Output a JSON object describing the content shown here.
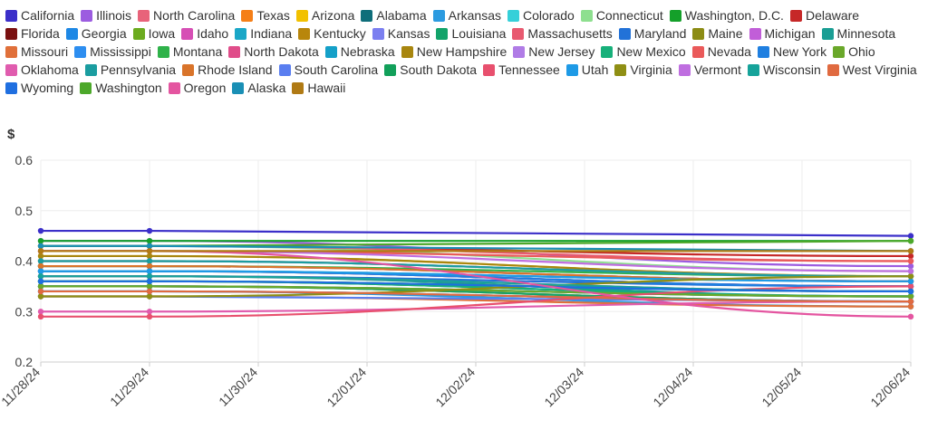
{
  "chart_data": {
    "type": "line",
    "ylabel": "$",
    "xlabel": "",
    "ylim": [
      0.2,
      0.6
    ],
    "yticks": [
      "0.2",
      "0.3",
      "0.4",
      "0.5",
      "0.6"
    ],
    "x": [
      "11/28/24",
      "11/29/24",
      "11/30/24",
      "12/01/24",
      "12/02/24",
      "12/03/24",
      "12/04/24",
      "12/05/24",
      "12/06/24"
    ],
    "grid": true,
    "legend_position": "top",
    "series": [
      {
        "name": "California",
        "color": "#3b2fc9",
        "values": [
          0.46,
          0.46,
          null,
          null,
          null,
          null,
          null,
          null,
          0.45
        ]
      },
      {
        "name": "Illinois",
        "color": "#9c5ce0",
        "values": [
          0.44,
          0.44,
          null,
          null,
          null,
          null,
          null,
          null,
          0.39
        ]
      },
      {
        "name": "North Carolina",
        "color": "#e8637a",
        "values": [
          0.39,
          0.39,
          null,
          null,
          null,
          null,
          null,
          null,
          0.36
        ]
      },
      {
        "name": "Texas",
        "color": "#f57f17",
        "values": [
          0.35,
          0.35,
          null,
          null,
          null,
          null,
          null,
          null,
          0.32
        ]
      },
      {
        "name": "Arizona",
        "color": "#f2c100",
        "values": [
          0.41,
          0.41,
          null,
          null,
          null,
          null,
          null,
          null,
          0.37
        ]
      },
      {
        "name": "Alabama",
        "color": "#0f6e7a",
        "values": [
          0.36,
          0.36,
          null,
          null,
          null,
          null,
          null,
          null,
          0.33
        ]
      },
      {
        "name": "Arkansas",
        "color": "#2c9be0",
        "values": [
          0.34,
          0.34,
          null,
          null,
          null,
          null,
          null,
          null,
          0.31
        ]
      },
      {
        "name": "Colorado",
        "color": "#35d0d9",
        "values": [
          0.39,
          0.39,
          null,
          null,
          null,
          null,
          null,
          null,
          0.36
        ]
      },
      {
        "name": "Connecticut",
        "color": "#8edf8f",
        "values": [
          0.43,
          0.43,
          null,
          null,
          null,
          null,
          null,
          null,
          0.38
        ]
      },
      {
        "name": "Washington, D.C.",
        "color": "#14a02a",
        "values": [
          0.44,
          0.44,
          null,
          null,
          null,
          null,
          null,
          null,
          0.44
        ]
      },
      {
        "name": "Delaware",
        "color": "#c62828",
        "values": [
          0.43,
          0.43,
          null,
          null,
          null,
          null,
          null,
          null,
          0.41
        ]
      },
      {
        "name": "Florida",
        "color": "#7a1010",
        "values": [
          0.38,
          0.38,
          null,
          null,
          null,
          null,
          null,
          null,
          0.35
        ]
      },
      {
        "name": "Georgia",
        "color": "#1e88e5",
        "values": [
          0.34,
          0.34,
          null,
          null,
          null,
          null,
          null,
          null,
          0.32
        ]
      },
      {
        "name": "Iowa",
        "color": "#6cab1f",
        "values": [
          0.36,
          0.36,
          null,
          null,
          null,
          null,
          null,
          null,
          0.34
        ]
      },
      {
        "name": "Idaho",
        "color": "#d64fb5",
        "values": [
          0.38,
          0.38,
          null,
          null,
          null,
          null,
          null,
          null,
          0.35
        ]
      },
      {
        "name": "Indiana",
        "color": "#1aa7c7",
        "values": [
          0.38,
          0.38,
          null,
          null,
          null,
          null,
          null,
          null,
          0.36
        ]
      },
      {
        "name": "Kentucky",
        "color": "#b8860b",
        "values": [
          0.35,
          0.35,
          null,
          null,
          null,
          null,
          null,
          null,
          0.32
        ]
      },
      {
        "name": "Kansas",
        "color": "#7b7ff0",
        "values": [
          0.35,
          0.35,
          null,
          null,
          null,
          null,
          null,
          null,
          0.33
        ]
      },
      {
        "name": "Louisiana",
        "color": "#12a36a",
        "values": [
          0.35,
          0.35,
          null,
          null,
          null,
          null,
          null,
          null,
          0.32
        ]
      },
      {
        "name": "Massachusetts",
        "color": "#e85a70",
        "values": [
          0.43,
          0.43,
          null,
          null,
          null,
          null,
          null,
          null,
          0.4
        ]
      },
      {
        "name": "Maryland",
        "color": "#2272d8",
        "values": [
          0.37,
          0.37,
          null,
          null,
          null,
          null,
          null,
          null,
          0.35
        ]
      },
      {
        "name": "Maine",
        "color": "#8c8c14",
        "values": [
          0.4,
          0.4,
          null,
          null,
          null,
          null,
          null,
          null,
          0.37
        ]
      },
      {
        "name": "Michigan",
        "color": "#c15ed8",
        "values": [
          0.39,
          0.39,
          null,
          null,
          null,
          null,
          null,
          null,
          0.36
        ]
      },
      {
        "name": "Minnesota",
        "color": "#1a9e94",
        "values": [
          0.37,
          0.37,
          null,
          null,
          null,
          null,
          null,
          null,
          0.33
        ]
      },
      {
        "name": "Missouri",
        "color": "#e0703a",
        "values": [
          0.33,
          0.33,
          null,
          null,
          null,
          null,
          null,
          null,
          0.31
        ]
      },
      {
        "name": "Mississippi",
        "color": "#2d8ef0",
        "values": [
          0.34,
          0.34,
          null,
          null,
          null,
          null,
          null,
          null,
          0.32
        ]
      },
      {
        "name": "Montana",
        "color": "#2fb24a",
        "values": [
          0.39,
          0.39,
          null,
          null,
          null,
          null,
          null,
          null,
          0.37
        ]
      },
      {
        "name": "North Dakota",
        "color": "#e04d8a",
        "values": [
          0.37,
          0.37,
          null,
          null,
          null,
          null,
          null,
          null,
          0.34
        ]
      },
      {
        "name": "Nebraska",
        "color": "#15a0c8",
        "values": [
          0.35,
          0.35,
          null,
          null,
          null,
          null,
          null,
          null,
          0.33
        ]
      },
      {
        "name": "New Hampshire",
        "color": "#a8860f",
        "values": [
          0.41,
          0.41,
          null,
          null,
          null,
          null,
          null,
          null,
          0.37
        ]
      },
      {
        "name": "New Jersey",
        "color": "#b07ce6",
        "values": [
          0.4,
          0.4,
          null,
          null,
          null,
          null,
          null,
          null,
          0.37
        ]
      },
      {
        "name": "New Mexico",
        "color": "#17b07a",
        "values": [
          0.36,
          0.36,
          null,
          null,
          null,
          null,
          null,
          null,
          0.33
        ]
      },
      {
        "name": "Nevada",
        "color": "#ea5a5a",
        "values": [
          0.42,
          0.42,
          null,
          null,
          null,
          null,
          null,
          null,
          0.4
        ]
      },
      {
        "name": "New York",
        "color": "#1f7fe0",
        "values": [
          0.38,
          0.38,
          null,
          null,
          null,
          null,
          null,
          null,
          0.35
        ]
      },
      {
        "name": "Ohio",
        "color": "#6aa82a",
        "values": [
          0.35,
          0.35,
          null,
          null,
          null,
          null,
          null,
          null,
          0.33
        ]
      },
      {
        "name": "Oklahoma",
        "color": "#e05cae",
        "values": [
          0.3,
          0.3,
          null,
          null,
          null,
          null,
          null,
          null,
          0.32
        ]
      },
      {
        "name": "Pennsylvania",
        "color": "#1b9da0",
        "values": [
          0.4,
          0.4,
          null,
          null,
          null,
          null,
          null,
          null,
          0.37
        ]
      },
      {
        "name": "Rhode Island",
        "color": "#d9742a",
        "values": [
          0.39,
          0.39,
          null,
          null,
          null,
          null,
          null,
          null,
          0.36
        ]
      },
      {
        "name": "South Carolina",
        "color": "#5a7ef0",
        "values": [
          0.33,
          0.33,
          null,
          null,
          null,
          null,
          null,
          null,
          0.32
        ]
      },
      {
        "name": "South Dakota",
        "color": "#12a05a",
        "values": [
          0.36,
          0.36,
          null,
          null,
          null,
          null,
          null,
          null,
          0.34
        ]
      },
      {
        "name": "Tennessee",
        "color": "#e8506e",
        "values": [
          0.29,
          0.29,
          null,
          null,
          null,
          null,
          null,
          null,
          0.35
        ]
      },
      {
        "name": "Utah",
        "color": "#1e9ae6",
        "values": [
          0.38,
          0.38,
          null,
          null,
          null,
          null,
          null,
          null,
          0.36
        ]
      },
      {
        "name": "Virginia",
        "color": "#8f8f14",
        "values": [
          0.33,
          0.33,
          null,
          null,
          null,
          null,
          null,
          null,
          0.37
        ]
      },
      {
        "name": "Vermont",
        "color": "#bf6ee0",
        "values": [
          0.42,
          0.42,
          null,
          null,
          null,
          null,
          null,
          null,
          0.38
        ]
      },
      {
        "name": "Wisconsin",
        "color": "#16a39a",
        "values": [
          0.37,
          0.37,
          null,
          null,
          null,
          null,
          null,
          null,
          0.34
        ]
      },
      {
        "name": "West Virginia",
        "color": "#e06a40",
        "values": [
          0.34,
          0.34,
          null,
          null,
          null,
          null,
          null,
          null,
          0.32
        ]
      },
      {
        "name": "Wyoming",
        "color": "#1f6fe0",
        "values": [
          0.36,
          0.36,
          null,
          null,
          null,
          null,
          null,
          null,
          0.34
        ]
      },
      {
        "name": "Washington",
        "color": "#4ca82a",
        "values": [
          0.43,
          0.43,
          null,
          null,
          null,
          null,
          null,
          null,
          0.44
        ]
      },
      {
        "name": "Oregon",
        "color": "#e455a0",
        "values": [
          0.42,
          0.42,
          null,
          null,
          null,
          null,
          null,
          null,
          0.29
        ]
      },
      {
        "name": "Alaska",
        "color": "#1a8fb5",
        "values": [
          0.43,
          0.43,
          null,
          null,
          null,
          null,
          null,
          null,
          0.42
        ]
      },
      {
        "name": "Hawaii",
        "color": "#b07a14",
        "values": [
          0.42,
          0.42,
          null,
          null,
          null,
          null,
          null,
          null,
          0.42
        ]
      }
    ]
  }
}
